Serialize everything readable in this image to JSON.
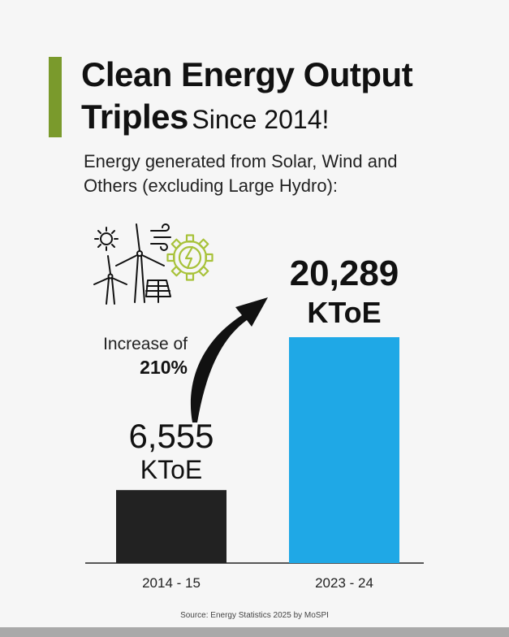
{
  "header": {
    "title_line1": "Clean Energy Output",
    "title_line2_bold": "Triples",
    "title_line2_rest": "Since 2014!",
    "subtitle": "Energy generated from Solar, Wind and Others (excluding Large Hydro):"
  },
  "annotation": {
    "label": "Increase of",
    "value": "210%"
  },
  "icons": [
    "sun-icon",
    "wind-turbine-icon",
    "wind-icon",
    "solar-panel-icon",
    "green-energy-gear-icon",
    "curved-arrow-icon"
  ],
  "colors": {
    "accent": "#7a9a2c",
    "bar_2014": "#222222",
    "bar_2023": "#1fa8e6",
    "icon_green": "#a8c23a"
  },
  "chart_data": {
    "type": "bar",
    "categories": [
      "2014 - 15",
      "2023 - 24"
    ],
    "values": [
      6555,
      20289
    ],
    "value_labels": [
      "6,555",
      "20,289"
    ],
    "unit": "KToE",
    "colors": [
      "#222222",
      "#1fa8e6"
    ],
    "ylim": [
      0,
      20289
    ]
  },
  "footer": {
    "source": "Source: Energy Statistics 2025 by MoSPI"
  }
}
